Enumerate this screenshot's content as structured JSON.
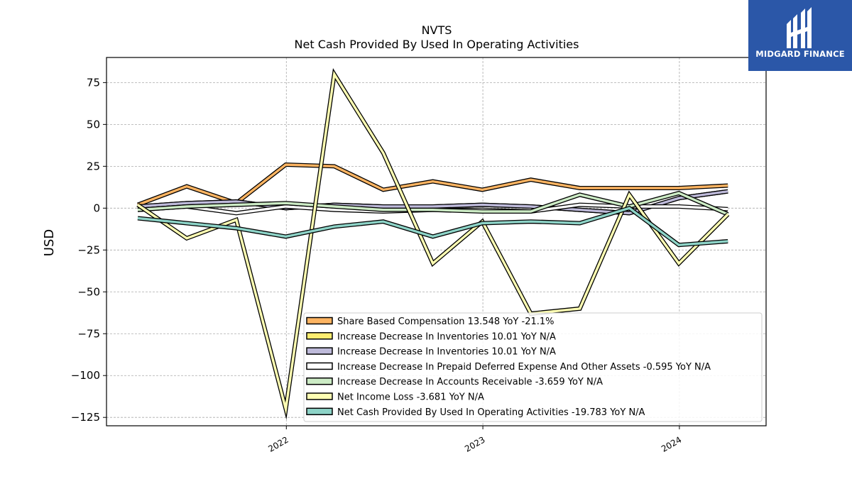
{
  "chart_data": {
    "type": "line",
    "title": "NVTS",
    "subtitle": "Net Cash Provided By Used In Operating Activities",
    "ylabel": "USD",
    "ylim": [
      -130,
      90
    ],
    "xlim": [
      "2021-02-01",
      "2024-06-10"
    ],
    "yticks": [
      75,
      50,
      25,
      0,
      -25,
      -50,
      -75,
      -100,
      -125
    ],
    "ytick_labels": [
      "75",
      "50",
      "25",
      "0",
      "−25",
      "−50",
      "−75",
      "−100",
      "−125"
    ],
    "xticks": [
      "2022-01-01",
      "2023-01-01",
      "2024-01-01"
    ],
    "xtick_labels": [
      "2022",
      "2023",
      "2024"
    ],
    "grid": true,
    "legend_position": "lower-right",
    "x": [
      "2021-03-31",
      "2021-06-30",
      "2021-09-30",
      "2021-12-31",
      "2022-03-31",
      "2022-06-30",
      "2022-09-30",
      "2022-12-31",
      "2023-03-31",
      "2023-06-30",
      "2023-09-30",
      "2023-12-31",
      "2024-03-31"
    ],
    "series": [
      {
        "name": "Share Based Compensation  13.548 YoY -21.1%",
        "color": "#fdb462",
        "values": [
          2,
          13,
          3,
          26,
          25,
          11,
          16,
          11,
          17,
          12,
          12,
          12,
          13.5
        ]
      },
      {
        "name": "Increase Decrease In Inventories  10.01 YoY N/A",
        "color": "#ffed6f",
        "values": [
          1,
          3,
          4,
          0,
          2,
          1,
          1,
          2,
          1,
          -1,
          -3,
          6,
          10
        ]
      },
      {
        "name": "Increase Decrease In Inventories  10.01 YoY N/A",
        "color": "#bebada",
        "values": [
          1,
          3,
          4,
          0,
          2,
          1,
          1,
          2,
          1,
          -1,
          -3,
          6,
          10
        ]
      },
      {
        "name": "Increase Decrease In Prepaid Deferred Expense And Other Assets  -0.595 YoY N/A",
        "color": "#ffffff",
        "values": [
          -1,
          1,
          -3,
          1,
          -1,
          -2,
          -1,
          -1,
          -2,
          2,
          1,
          1,
          -0.6
        ]
      },
      {
        "name": "Increase Decrease In Accounts Receivable  -3.659 YoY N/A",
        "color": "#ccebc5",
        "values": [
          -1,
          1,
          2,
          3,
          1,
          -1,
          -1,
          -2,
          -2,
          8,
          1,
          9,
          -3.7
        ]
      },
      {
        "name": "Net Income Loss  -3.681 YoY N/A",
        "color": "#ffffb3",
        "values": [
          2,
          -18,
          -7,
          -120,
          80,
          33,
          -33,
          -8,
          -63,
          -60,
          8,
          -33,
          -3.7
        ]
      },
      {
        "name": "Net Cash Provided By Used In Operating Activities  -19.783 YoY N/A",
        "color": "#8dd3c7",
        "values": [
          -6,
          -9,
          -12,
          -17,
          -11,
          -8,
          -17,
          -9,
          -8,
          -9,
          0,
          -22,
          -19.8
        ]
      }
    ]
  },
  "logo": {
    "text": "MIDGARD FINANCE"
  }
}
